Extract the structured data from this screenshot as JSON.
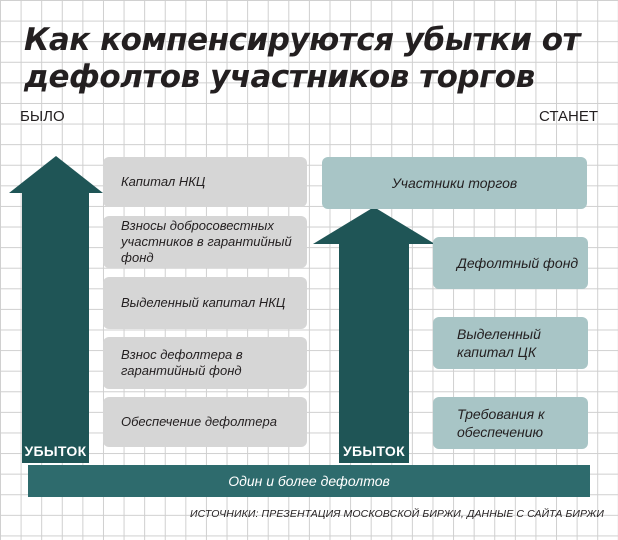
{
  "title": "Как компенсируются убытки от дефолтов участников торгов",
  "labels": {
    "before": "БЫЛО",
    "after": "СТАНЕТ"
  },
  "arrows": {
    "left_label": "УБЫТОК",
    "right_label": "УБЫТОК"
  },
  "before_items": [
    "Капитал НКЦ",
    "Взносы добросовестных участников в гарантийный фонд",
    "Выделенный капитал НКЦ",
    "Взнос дефолтера в гарантийный фонд",
    "Обеспечение дефолтера"
  ],
  "after_top": "Участники торгов",
  "after_items": [
    "Дефолтный фонд",
    "Выделенный капитал ЦК",
    "Требования к обеспечению"
  ],
  "base_label": "Один и более дефолтов",
  "source": "ИСТОЧНИКИ: ПРЕЗЕНТАЦИЯ МОСКОВСКОЙ БИРЖИ, ДАННЫЕ С САЙТА БИРЖИ",
  "colors": {
    "arrow": "#1f5556",
    "base_bar": "#2e6b6d",
    "gray_box": "#d6d6d6",
    "teal_box": "#a8c5c6",
    "grid": "#cfcfcf"
  }
}
